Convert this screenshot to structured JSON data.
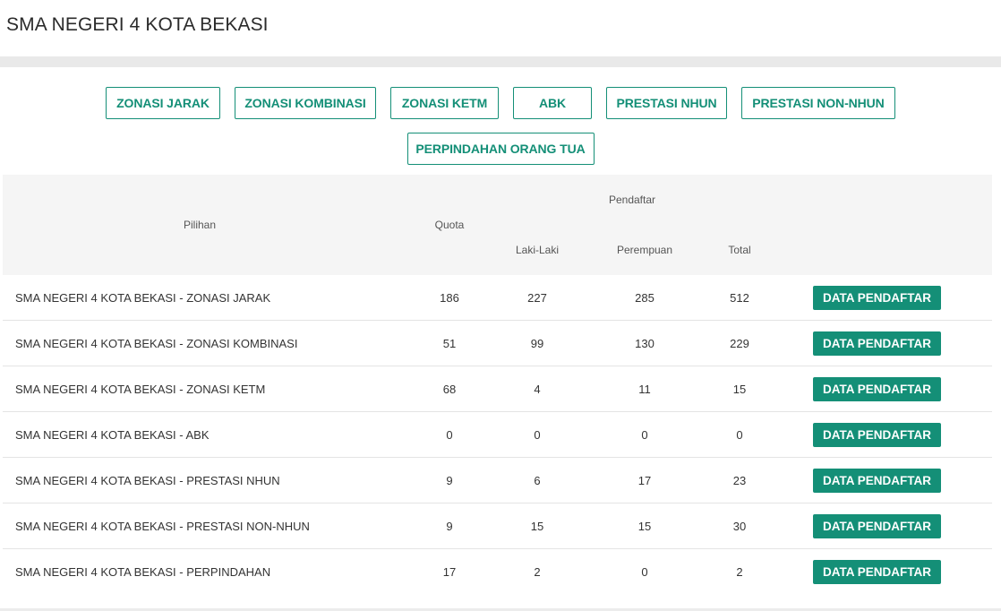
{
  "page": {
    "title": "SMA NEGERI 4 KOTA BEKASI"
  },
  "filters": [
    "ZONASI JARAK",
    "ZONASI KOMBINASI",
    "ZONASI KETM",
    "ABK",
    "PRESTASI NHUN",
    "PRESTASI NON-NHUN",
    "PERPINDAHAN ORANG TUA"
  ],
  "table": {
    "headers": {
      "pilihan": "Pilihan",
      "quota": "Quota",
      "pendaftar": "Pendaftar",
      "laki": "Laki-Laki",
      "perempuan": "Perempuan",
      "total": "Total"
    },
    "rows": [
      {
        "pilihan": "SMA NEGERI 4 KOTA BEKASI - ZONASI JARAK",
        "quota": "186",
        "laki": "227",
        "perempuan": "285",
        "total": "512",
        "action": "DATA PENDAFTAR"
      },
      {
        "pilihan": "SMA NEGERI 4 KOTA BEKASI - ZONASI KOMBINASI",
        "quota": "51",
        "laki": "99",
        "perempuan": "130",
        "total": "229",
        "action": "DATA PENDAFTAR"
      },
      {
        "pilihan": "SMA NEGERI 4 KOTA BEKASI - ZONASI KETM",
        "quota": "68",
        "laki": "4",
        "perempuan": "11",
        "total": "15",
        "action": "DATA PENDAFTAR"
      },
      {
        "pilihan": "SMA NEGERI 4 KOTA BEKASI - ABK",
        "quota": "0",
        "laki": "0",
        "perempuan": "0",
        "total": "0",
        "action": "DATA PENDAFTAR"
      },
      {
        "pilihan": "SMA NEGERI 4 KOTA BEKASI - PRESTASI NHUN",
        "quota": "9",
        "laki": "6",
        "perempuan": "17",
        "total": "23",
        "action": "DATA PENDAFTAR"
      },
      {
        "pilihan": "SMA NEGERI 4 KOTA BEKASI - PRESTASI NON-NHUN",
        "quota": "9",
        "laki": "15",
        "perempuan": "15",
        "total": "30",
        "action": "DATA PENDAFTAR"
      },
      {
        "pilihan": "SMA NEGERI 4 KOTA BEKASI - PERPINDAHAN",
        "quota": "17",
        "laki": "2",
        "perempuan": "0",
        "total": "2",
        "action": "DATA PENDAFTAR"
      }
    ]
  },
  "colors": {
    "accent": "#148f77",
    "header_bg": "#f5f5f5",
    "divider": "#e9e9e9"
  }
}
